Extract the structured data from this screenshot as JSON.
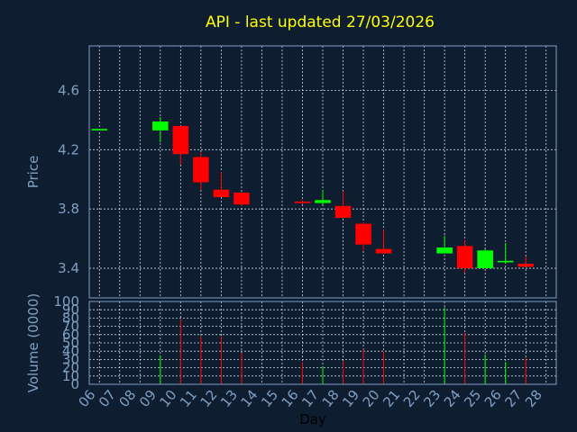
{
  "chart_data": [
    {
      "type": "candlestick",
      "title": "API - last updated 27/03/2026",
      "ylabel": "Price",
      "ylim": [
        3.2,
        4.9
      ],
      "yticks": [
        "3.4",
        "3.8",
        "4.2",
        "4.6"
      ],
      "grid": true,
      "up_color": "#00ff00",
      "down_color": "#ff0000",
      "x": [
        "06",
        "07",
        "08",
        "09",
        "10",
        "11",
        "12",
        "13",
        "14",
        "15",
        "16",
        "17",
        "18",
        "19",
        "20",
        "21",
        "22",
        "23",
        "24",
        "25",
        "26",
        "27",
        "28"
      ],
      "candles": [
        {
          "day": "06",
          "open": 4.33,
          "high": 4.34,
          "low": 4.33,
          "close": 4.34
        },
        {
          "day": "09",
          "open": 4.33,
          "high": 4.42,
          "low": 4.25,
          "close": 4.39
        },
        {
          "day": "10",
          "open": 4.36,
          "high": 4.36,
          "low": 4.1,
          "close": 4.17
        },
        {
          "day": "11",
          "open": 4.15,
          "high": 4.18,
          "low": 3.93,
          "close": 3.98
        },
        {
          "day": "12",
          "open": 3.93,
          "high": 4.05,
          "low": 3.88,
          "close": 3.88
        },
        {
          "day": "13",
          "open": 3.91,
          "high": 3.91,
          "low": 3.82,
          "close": 3.83
        },
        {
          "day": "16",
          "open": 3.85,
          "high": 3.86,
          "low": 3.83,
          "close": 3.84
        },
        {
          "day": "17",
          "open": 3.84,
          "high": 3.93,
          "low": 3.83,
          "close": 3.86
        },
        {
          "day": "18",
          "open": 3.82,
          "high": 3.92,
          "low": 3.74,
          "close": 3.74
        },
        {
          "day": "19",
          "open": 3.7,
          "high": 3.71,
          "low": 3.52,
          "close": 3.56
        },
        {
          "day": "20",
          "open": 3.53,
          "high": 3.66,
          "low": 3.5,
          "close": 3.5
        },
        {
          "day": "23",
          "open": 3.5,
          "high": 3.62,
          "low": 3.5,
          "close": 3.54
        },
        {
          "day": "24",
          "open": 3.55,
          "high": 3.59,
          "low": 3.37,
          "close": 3.4
        },
        {
          "day": "25",
          "open": 3.4,
          "high": 3.53,
          "low": 3.4,
          "close": 3.52
        },
        {
          "day": "26",
          "open": 3.44,
          "high": 3.57,
          "low": 3.43,
          "close": 3.45
        },
        {
          "day": "27",
          "open": 3.43,
          "high": 3.48,
          "low": 3.41,
          "close": 3.41
        }
      ]
    },
    {
      "type": "bar",
      "ylabel": "Volume (0000)",
      "xlabel": "Day",
      "ylim": [
        0,
        100
      ],
      "yticks": [
        "0",
        "10",
        "20",
        "30",
        "40",
        "50",
        "60",
        "70",
        "80",
        "90",
        "100"
      ],
      "grid": true,
      "categories": [
        "06",
        "07",
        "08",
        "09",
        "10",
        "11",
        "12",
        "13",
        "14",
        "15",
        "16",
        "17",
        "18",
        "19",
        "20",
        "21",
        "22",
        "23",
        "24",
        "25",
        "26",
        "27",
        "28"
      ],
      "bars": [
        {
          "day": "09",
          "value": 35,
          "color": "#00ff00"
        },
        {
          "day": "10",
          "value": 78,
          "color": "#ff0000"
        },
        {
          "day": "11",
          "value": 58,
          "color": "#ff0000"
        },
        {
          "day": "12",
          "value": 58,
          "color": "#ff0000"
        },
        {
          "day": "13",
          "value": 38,
          "color": "#ff0000"
        },
        {
          "day": "16",
          "value": 27,
          "color": "#ff0000"
        },
        {
          "day": "17",
          "value": 22,
          "color": "#00ff00"
        },
        {
          "day": "18",
          "value": 28,
          "color": "#ff0000"
        },
        {
          "day": "19",
          "value": 42,
          "color": "#ff0000"
        },
        {
          "day": "20",
          "value": 39,
          "color": "#ff0000"
        },
        {
          "day": "23",
          "value": 93,
          "color": "#00ff00"
        },
        {
          "day": "24",
          "value": 62,
          "color": "#ff0000"
        },
        {
          "day": "25",
          "value": 36,
          "color": "#00ff00"
        },
        {
          "day": "26",
          "value": 27,
          "color": "#00ff00"
        },
        {
          "day": "27",
          "value": 32,
          "color": "#ff0000"
        }
      ]
    }
  ]
}
